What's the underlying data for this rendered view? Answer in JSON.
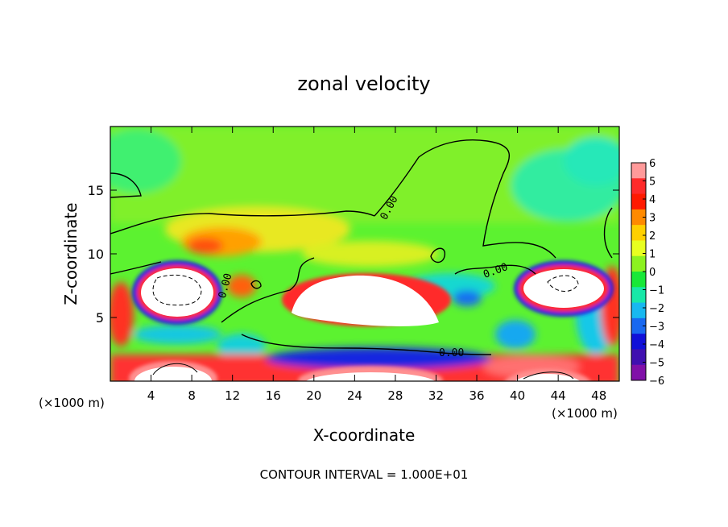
{
  "chart_data": {
    "type": "heatmap",
    "title": "zonal velocity",
    "xlabel": "X-coordinate",
    "ylabel": "Z-coordinate",
    "x_unit_left": "(×1000 m)",
    "x_unit_right": "(×1000 m)",
    "footer": "CONTOUR INTERVAL = 1.000E+01",
    "xlim": [
      0,
      50
    ],
    "ylim": [
      0,
      20
    ],
    "x_ticks": [
      4,
      8,
      12,
      16,
      20,
      24,
      28,
      32,
      36,
      40,
      44,
      48
    ],
    "y_ticks": [
      5,
      10,
      15
    ],
    "contour_labels": [
      "0.00",
      "0.00",
      "0.00",
      "0.00"
    ],
    "colorbar": {
      "ticks": [
        6,
        5,
        4,
        3,
        2,
        1,
        0,
        -1,
        -2,
        -3,
        -4,
        -5,
        -6
      ],
      "range": [
        -6,
        6
      ],
      "colors": [
        "#ff9a9a",
        "#ff2a2a",
        "#ff1a00",
        "#ff8a00",
        "#ffd000",
        "#e8ff20",
        "#8cf220",
        "#18e838",
        "#18e8a8",
        "#18b8f0",
        "#1868f0",
        "#1010d8",
        "#4010b0",
        "#8010a8"
      ]
    },
    "regions": {
      "background": "#5cf230",
      "upper_band": "#7cf22a",
      "white_saturation": "#ffffff"
    }
  }
}
